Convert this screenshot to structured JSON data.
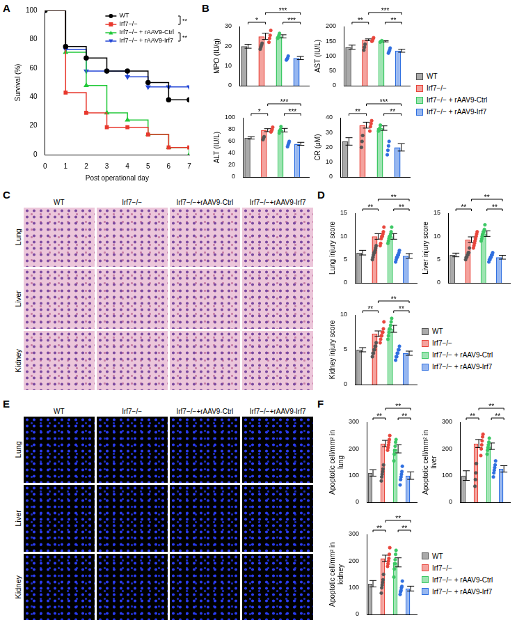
{
  "chart_data": [
    {
      "panel": "A",
      "type": "line",
      "xlabel": "Post operational day",
      "ylabel": "Survival (%)",
      "x": [
        0,
        1,
        2,
        3,
        4,
        5,
        6,
        7
      ],
      "xlim": [
        0,
        7
      ],
      "xticks": [
        0,
        1,
        2,
        3,
        4,
        5,
        6,
        7
      ],
      "ylim": [
        0,
        100
      ],
      "yticks": [
        0,
        20,
        40,
        60,
        80,
        100
      ],
      "legend": "upper right",
      "series": [
        {
          "name": "WT",
          "color": "#000000",
          "marker": "circle",
          "values": [
            100,
            75,
            67,
            58,
            58,
            50,
            38,
            38
          ]
        },
        {
          "name": "Irf7−/−",
          "color": "#e8392e",
          "marker": "square",
          "values": [
            100,
            43,
            29,
            19,
            19,
            14,
            5,
            5
          ]
        },
        {
          "name": "Irf7−/− + rAAV9-Ctrl",
          "color": "#22c93a",
          "marker": "triangle",
          "values": [
            100,
            71,
            48,
            29,
            24,
            14,
            5,
            0
          ]
        },
        {
          "name": "Irf7−/− + rAAV9-Irf7",
          "color": "#2447d6",
          "marker": "triangle-down",
          "values": [
            100,
            73,
            58,
            58,
            54,
            47,
            47,
            47
          ]
        }
      ],
      "annotations": [
        {
          "text": "**",
          "between": [
            0,
            1
          ]
        },
        {
          "text": "**",
          "between": [
            2,
            3
          ]
        }
      ]
    },
    {
      "panel": "B",
      "type": "bar",
      "legend": "right",
      "tick_labels": "y",
      "categories": [
        "WT",
        "Irf7−/−",
        "Irf7−/− + rAAV9-Ctrl",
        "Irf7−/− + rAAV9-Irf7"
      ],
      "colors": [
        "#555555",
        "#e8463c",
        "#3cc864",
        "#2f6fe0"
      ],
      "charts": [
        {
          "ylabel": "MPO (IU/g)",
          "ylim": [
            0,
            30
          ],
          "yticks": [
            0,
            10,
            20,
            30
          ],
          "values": [
            20,
            25,
            25,
            14
          ],
          "errors": [
            1.0,
            1.6,
            0.8,
            0.8
          ],
          "points": [
            [
              18.5,
              19.5,
              20.5,
              21.5
            ],
            [
              22,
              24,
              25.5,
              28
            ],
            [
              24,
              24.5,
              25.5,
              26.5
            ],
            [
              13,
              13.5,
              14,
              15
            ]
          ],
          "significance": [
            {
              "text": "*",
              "between": [
                0,
                1
              ]
            },
            {
              "text": "***",
              "between": [
                1,
                3
              ]
            },
            {
              "text": "***",
              "between": [
                2,
                3
              ]
            }
          ]
        },
        {
          "ylabel": "AST (IU/L)",
          "ylim": [
            0,
            200
          ],
          "yticks": [
            0,
            50,
            100,
            150,
            200
          ],
          "values": [
            130,
            155,
            150,
            118
          ],
          "errors": [
            7,
            3,
            2,
            5
          ],
          "points": [
            [
              120,
              130,
              140
            ],
            [
              150,
              152,
              158,
              162
            ],
            [
              147,
              149,
              150,
              152
            ],
            [
              110,
              115,
              120,
              127
            ]
          ],
          "significance": [
            {
              "text": "**",
              "between": [
                0,
                1
              ]
            },
            {
              "text": "***",
              "between": [
                1,
                3
              ]
            },
            {
              "text": "**",
              "between": [
                2,
                3
              ]
            }
          ]
        },
        {
          "ylabel": "ALT (IU/L)",
          "ylim": [
            0,
            100
          ],
          "yticks": [
            0,
            20,
            40,
            60,
            80,
            100
          ],
          "values": [
            66,
            79,
            79,
            56
          ],
          "errors": [
            2,
            2.5,
            3,
            2.5
          ],
          "points": [
            [
              63,
              66,
              68
            ],
            [
              76,
              78,
              80,
              84
            ],
            [
              74,
              78,
              80,
              85
            ],
            [
              51,
              54,
              57,
              60
            ]
          ],
          "significance": [
            {
              "text": "*",
              "between": [
                0,
                1
              ]
            },
            {
              "text": "***",
              "between": [
                1,
                3
              ]
            },
            {
              "text": "***",
              "between": [
                2,
                3
              ]
            }
          ]
        },
        {
          "ylabel": "CR (μM)",
          "ylim": [
            0,
            40
          ],
          "yticks": [
            0,
            10,
            20,
            30,
            40
          ],
          "values": [
            24,
            35,
            33,
            20
          ],
          "errors": [
            2.5,
            2,
            1.5,
            2.5
          ],
          "points": [
            [
              20,
              24,
              28
            ],
            [
              31,
              34,
              36,
              38
            ],
            [
              31,
              32,
              33,
              35
            ],
            [
              15,
              18,
              21,
              24
            ]
          ],
          "significance": [
            {
              "text": "**",
              "between": [
                0,
                1
              ]
            },
            {
              "text": "***",
              "between": [
                1,
                3
              ]
            },
            {
              "text": "**",
              "between": [
                2,
                3
              ]
            }
          ]
        }
      ]
    },
    {
      "panel": "C",
      "type": "image",
      "color": "#ecc6da",
      "columns": [
        "WT",
        "Irf7−/−",
        "Irf7−/−+rAAV9-Ctrl",
        "Irf7−/−+rAAV9-Irf7"
      ],
      "rows": [
        "Lung",
        "Liver",
        "Kidney"
      ]
    },
    {
      "panel": "D",
      "type": "bar",
      "legend": "lower right",
      "tick_labels": "y",
      "categories": [
        "WT",
        "Irf7−/−",
        "Irf7−/− + rAAV9-Ctrl",
        "Irf7−/− + rAAV9-Irf7"
      ],
      "colors": [
        "#555555",
        "#e8463c",
        "#3cc864",
        "#2f6fe0"
      ],
      "charts": [
        {
          "ylabel": "Lung injury score",
          "ylim": [
            0,
            15
          ],
          "yticks": [
            0,
            5,
            10,
            15
          ],
          "values": [
            6.5,
            10,
            10,
            5.8
          ],
          "errors": [
            0.5,
            0.6,
            0.6,
            0.5
          ],
          "points": [
            [
              5,
              5.5,
              6,
              6.5,
              6.5,
              7,
              7.5,
              8
            ],
            [
              8,
              8.5,
              9.5,
              10,
              10,
              10.5,
              11,
              12
            ],
            [
              8.5,
              9,
              9.5,
              10,
              10,
              10.5,
              11,
              12
            ],
            [
              4.5,
              5,
              5.5,
              5.5,
              6,
              6,
              6.5,
              7
            ]
          ],
          "significance": [
            {
              "text": "**",
              "between": [
                0,
                1
              ]
            },
            {
              "text": "**",
              "between": [
                1,
                3
              ]
            },
            {
              "text": "**",
              "between": [
                2,
                3
              ]
            }
          ]
        },
        {
          "ylabel": "Liver injury score",
          "ylim": [
            0,
            15
          ],
          "yticks": [
            0,
            5,
            10,
            15
          ],
          "values": [
            6,
            9.3,
            10.6,
            5.5
          ],
          "errors": [
            0.4,
            0.6,
            0.6,
            0.4
          ],
          "points": [
            [
              5,
              5.5,
              5.5,
              6,
              6,
              6.5,
              6.5,
              7.5
            ],
            [
              7.5,
              8,
              8.5,
              9,
              9.5,
              10,
              10.5,
              11
            ],
            [
              9,
              9.5,
              10,
              10.5,
              11,
              11,
              11.5,
              12.5
            ],
            [
              4.5,
              5,
              5,
              5.5,
              5.5,
              6,
              6,
              6.5
            ]
          ],
          "significance": [
            {
              "text": "**",
              "between": [
                0,
                1
              ]
            },
            {
              "text": "**",
              "between": [
                1,
                3
              ]
            },
            {
              "text": "**",
              "between": [
                2,
                3
              ]
            }
          ]
        },
        {
          "ylabel": "Kidney injury score",
          "ylim": [
            0,
            10
          ],
          "yticks": [
            0,
            5,
            10
          ],
          "values": [
            5,
            7.3,
            8,
            4.5
          ],
          "errors": [
            0.3,
            0.4,
            0.5,
            0.3
          ],
          "points": [
            [
              4,
              4.5,
              4.5,
              5,
              5,
              5.5,
              5.5,
              6
            ],
            [
              6,
              6.5,
              7,
              7,
              7.5,
              7.5,
              8,
              9
            ],
            [
              6.5,
              7,
              7.5,
              8,
              8,
              8.5,
              9,
              9.5
            ],
            [
              3.5,
              4,
              4,
              4.5,
              4.5,
              5,
              5,
              5.5
            ]
          ],
          "significance": [
            {
              "text": "**",
              "between": [
                0,
                1
              ]
            },
            {
              "text": "**",
              "between": [
                1,
                3
              ]
            },
            {
              "text": "**",
              "between": [
                2,
                3
              ]
            }
          ]
        }
      ]
    },
    {
      "panel": "E",
      "type": "image",
      "color": "#000000",
      "columns": [
        "WT",
        "Irf7−/−",
        "Irf7−/−+rAAV9-Ctrl",
        "Irf7−/−+rAAV9-Irf7"
      ],
      "rows": [
        "Lung",
        "Liver",
        "Kidney"
      ]
    },
    {
      "panel": "F",
      "type": "bar",
      "legend": "lower right",
      "tick_labels": "y",
      "categories": [
        "WT",
        "Irf7−/−",
        "Irf7−/− + rAAV9-Ctrl",
        "Irf7−/− + rAAV9-Irf7"
      ],
      "colors": [
        "#555555",
        "#e8463c",
        "#3cc864",
        "#2f6fe0"
      ],
      "charts": [
        {
          "ylabel": "Apoptotic cell/mm² in lung",
          "ylim": [
            0,
            300
          ],
          "yticks": [
            0,
            100,
            200,
            300
          ],
          "values": [
            110,
            220,
            200,
            100
          ],
          "errors": [
            12,
            12,
            15,
            14
          ],
          "points": [
            [
              80,
              95,
              105,
              115,
              125,
              140
            ],
            [
              195,
              205,
              215,
              225,
              235,
              250
            ],
            [
              155,
              180,
              195,
              210,
              225,
              235
            ],
            [
              65,
              85,
              95,
              105,
              115,
              135
            ]
          ],
          "significance": [
            {
              "text": "**",
              "between": [
                0,
                1
              ]
            },
            {
              "text": "**",
              "between": [
                1,
                3
              ]
            },
            {
              "text": "**",
              "between": [
                2,
                3
              ]
            }
          ]
        },
        {
          "ylabel": "Apoptotic cell/mm² in liver",
          "ylim": [
            0,
            300
          ],
          "yticks": [
            0,
            100,
            200,
            300
          ],
          "values": [
            100,
            220,
            210,
            125
          ],
          "errors": [
            18,
            15,
            12,
            12
          ],
          "points": [
            [
              60,
              85,
              110,
              145
            ],
            [
              175,
              200,
              215,
              230,
              245,
              255
            ],
            [
              180,
              195,
              205,
              215,
              225,
              240
            ],
            [
              95,
              110,
              120,
              130,
              140,
              155
            ]
          ],
          "significance": [
            {
              "text": "**",
              "between": [
                0,
                1
              ]
            },
            {
              "text": "**",
              "between": [
                1,
                3
              ]
            },
            {
              "text": "**",
              "between": [
                2,
                3
              ]
            }
          ]
        },
        {
          "ylabel": "Apoptotic cell/mm² in kidney",
          "ylim": [
            0,
            300
          ],
          "yticks": [
            0,
            100,
            200,
            300
          ],
          "values": [
            115,
            210,
            195,
            97
          ],
          "errors": [
            12,
            12,
            17,
            9
          ],
          "points": [
            [
              80,
              100,
              110,
              120,
              130,
              150
            ],
            [
              180,
              190,
              200,
              210,
              225,
              250
            ],
            [
              140,
              170,
              190,
              205,
              225,
              240
            ],
            [
              75,
              85,
              90,
              100,
              105,
              125
            ]
          ],
          "significance": [
            {
              "text": "**",
              "between": [
                0,
                1
              ]
            },
            {
              "text": "**",
              "between": [
                1,
                3
              ]
            },
            {
              "text": "**",
              "between": [
                2,
                3
              ]
            }
          ]
        }
      ]
    }
  ]
}
